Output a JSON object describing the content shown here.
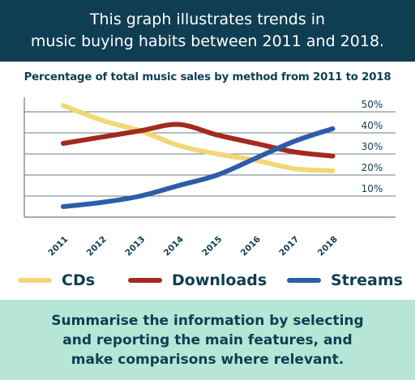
{
  "header": {
    "line1": "This graph illustrates trends in",
    "line2": "music buying habits between 2011 and 2018."
  },
  "footer": {
    "line1": "Summarise the information by selecting",
    "line2": "and reporting the main features, and",
    "line3": "make comparisons where relevant."
  },
  "chart_data": {
    "type": "line",
    "title": "Percentage of total music sales by method from 2011 to 2018",
    "xlabel": "",
    "ylabel": "",
    "x": [
      "2011",
      "2012",
      "2013",
      "2014",
      "2015",
      "2016",
      "2017",
      "2018"
    ],
    "ylim": [
      0,
      55
    ],
    "yticks": [
      10,
      20,
      30,
      40,
      50
    ],
    "ytick_labels": [
      "10%",
      "20%",
      "30%",
      "40%",
      "50%"
    ],
    "grid": true,
    "legend_position": "bottom",
    "series": [
      {
        "name": "CDs",
        "color": "#f2d777",
        "values": [
          53,
          46,
          41,
          34,
          30,
          27,
          23,
          22
        ]
      },
      {
        "name": "Downloads",
        "color": "#a32a20",
        "values": [
          35,
          38,
          41,
          44,
          39,
          35,
          31,
          29
        ]
      },
      {
        "name": "Streams",
        "color": "#2d5da8",
        "values": [
          5,
          7,
          10,
          15,
          20,
          28,
          36,
          42
        ]
      }
    ]
  }
}
